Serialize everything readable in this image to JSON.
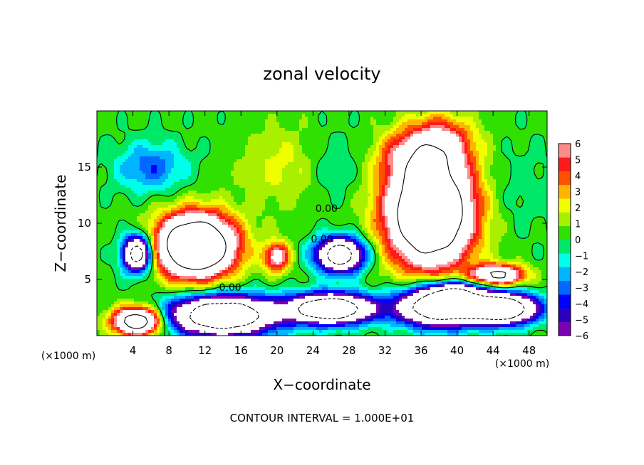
{
  "chart_data": {
    "type": "heatmap",
    "title": "zonal velocity",
    "xlabel": "X−coordinate",
    "ylabel": "Z−coordinate",
    "x_unit_label": "(×1000 m)",
    "y_unit_label": "(×1000 m)",
    "footer": "CONTOUR INTERVAL = 1.000E+01",
    "xlim": [
      0,
      50
    ],
    "ylim": [
      0,
      20
    ],
    "x_ticks": [
      4,
      8,
      12,
      16,
      20,
      24,
      28,
      32,
      36,
      40,
      44,
      48
    ],
    "y_ticks": [
      5,
      10,
      15
    ],
    "colorbar": {
      "min": -6,
      "max": 6,
      "ticks": [
        6,
        5,
        4,
        3,
        2,
        1,
        0,
        -1,
        -2,
        -3,
        -4,
        -5,
        -6
      ],
      "colors": [
        "#7a00b4",
        "#2a00c0",
        "#0000ff",
        "#0068ff",
        "#00b4ff",
        "#00ffe8",
        "#00e868",
        "#30e000",
        "#a8f000",
        "#f0ff00",
        "#ffb400",
        "#ff5000",
        "#ff1a1a",
        "#ff8a8a"
      ]
    },
    "contour_labels": [
      {
        "text": "0.00",
        "x": 14.8,
        "y": 4.0
      },
      {
        "text": "0.00",
        "x": 25.0,
        "y": 8.3
      },
      {
        "text": "0.00",
        "x": 25.5,
        "y": 11.0
      }
    ],
    "features": [
      {
        "x": 11,
        "y": 8,
        "rx": 4.2,
        "ry": 2.7,
        "v": 18
      },
      {
        "x": 4.5,
        "y": 7.3,
        "rx": 1.6,
        "ry": 1.6,
        "v": -14
      },
      {
        "x": 27,
        "y": 7.2,
        "rx": 2.6,
        "ry": 1.5,
        "v": -14
      },
      {
        "x": 37,
        "y": 11,
        "rx": 4.6,
        "ry": 4.6,
        "v": 18
      },
      {
        "x": 38,
        "y": 17,
        "rx": 3.6,
        "ry": 2.4,
        "v": 6
      },
      {
        "x": 44.5,
        "y": 5.4,
        "rx": 2.8,
        "ry": 0.9,
        "v": 11
      },
      {
        "x": 14,
        "y": 1.8,
        "rx": 5.8,
        "ry": 1.7,
        "v": -16
      },
      {
        "x": 26,
        "y": 2.4,
        "rx": 4.5,
        "ry": 1.3,
        "v": -16
      },
      {
        "x": 38,
        "y": 2.6,
        "rx": 4.5,
        "ry": 1.7,
        "v": -16
      },
      {
        "x": 45,
        "y": 2.4,
        "rx": 3.8,
        "ry": 1.3,
        "v": -16
      },
      {
        "x": 4.5,
        "y": 1.3,
        "rx": 2.6,
        "ry": 1.2,
        "v": 14
      },
      {
        "x": 20,
        "y": 7,
        "rx": 1.4,
        "ry": 1.3,
        "v": 7
      },
      {
        "x": 40,
        "y": 4,
        "rx": 2.8,
        "ry": 0.8,
        "v": -6
      },
      {
        "x": 6,
        "y": 15,
        "rx": 3.8,
        "ry": 2.2,
        "v": -3.5
      },
      {
        "x": 21,
        "y": 15,
        "rx": 5,
        "ry": 3.5,
        "v": 1.8
      },
      {
        "x": 26,
        "y": 15,
        "rx": 3,
        "ry": 3,
        "v": -1.5
      },
      {
        "x": 47,
        "y": 13,
        "rx": 4,
        "ry": 4,
        "v": -0.8
      },
      {
        "x": 34,
        "y": 16,
        "rx": 3,
        "ry": 2,
        "v": 3
      }
    ]
  }
}
